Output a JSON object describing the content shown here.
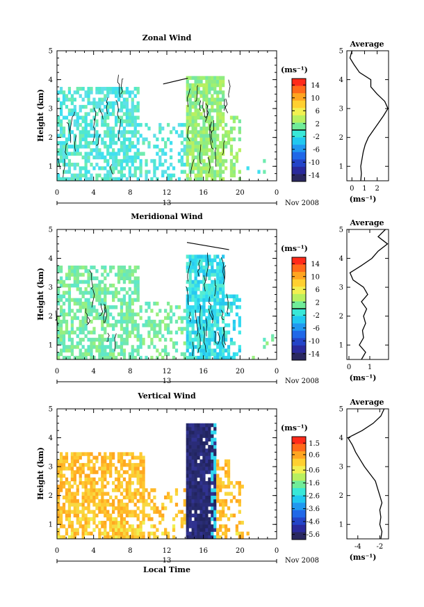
{
  "chart_data": [
    {
      "type": "heatmap",
      "title": "Zonal Wind",
      "ylabel": "Height (km)",
      "xlabel": "",
      "ylim": [
        0.5,
        5
      ],
      "yticks": [
        "1",
        "2",
        "3",
        "4",
        "5"
      ],
      "xticks": [
        "0",
        "4",
        "8",
        "12",
        "16",
        "20",
        "0"
      ],
      "day_label": "13",
      "date_label": "Nov 2008",
      "colorbar": {
        "unit": "(ms⁻¹)",
        "range": [
          -16,
          16
        ],
        "ticks": [
          "14",
          "10",
          "6",
          "2",
          "-2",
          "-6",
          "-10",
          "-14"
        ],
        "zero_line": 0
      },
      "profile": {
        "title": "Average",
        "xlabel": "(ms⁻¹)",
        "xticks": [
          "0",
          "1",
          "2"
        ],
        "xlim": [
          -0.4,
          2.9
        ],
        "heights": [
          0.5,
          0.75,
          1.0,
          1.25,
          1.5,
          1.75,
          2.0,
          2.25,
          2.5,
          2.75,
          3.0,
          3.25,
          3.5,
          3.75,
          4.0,
          4.25,
          4.5,
          4.75,
          5.0
        ],
        "values": [
          0.7,
          0.75,
          0.7,
          0.8,
          0.9,
          1.05,
          1.3,
          1.7,
          2.1,
          2.5,
          2.85,
          2.6,
          2.0,
          1.5,
          1.5,
          0.6,
          0.2,
          -0.15,
          0.0
        ]
      },
      "field": {
        "seed": 11,
        "base": "cyan-green",
        "night_color": "cyan",
        "day_color": "green-yellow"
      }
    },
    {
      "type": "heatmap",
      "title": "Meridional Wind",
      "ylabel": "Height (km)",
      "xlabel": "",
      "ylim": [
        0.5,
        5
      ],
      "yticks": [
        "1",
        "2",
        "3",
        "4",
        "5"
      ],
      "xticks": [
        "0",
        "4",
        "8",
        "12",
        "16",
        "20",
        "0"
      ],
      "day_label": "13",
      "date_label": "Nov 2008",
      "colorbar": {
        "unit": "(ms⁻¹)",
        "range": [
          -16,
          16
        ],
        "ticks": [
          "14",
          "10",
          "6",
          "2",
          "-2",
          "-6",
          "-10",
          "-14"
        ],
        "zero_line": 0
      },
      "profile": {
        "title": "Average",
        "xlabel": "(ms⁻¹)",
        "xticks": [
          "0",
          "1"
        ],
        "xlim": [
          -0.1,
          1.9
        ],
        "heights": [
          0.5,
          0.75,
          1.0,
          1.25,
          1.5,
          1.75,
          2.0,
          2.25,
          2.5,
          2.75,
          3.0,
          3.25,
          3.5,
          3.75,
          4.0,
          4.25,
          4.5,
          4.75,
          5.0
        ],
        "values": [
          0.6,
          0.8,
          0.5,
          0.7,
          0.65,
          0.8,
          0.7,
          0.85,
          0.6,
          0.9,
          0.7,
          0.2,
          0.05,
          0.6,
          1.1,
          1.4,
          1.85,
          1.4,
          1.75
        ]
      },
      "field": {
        "seed": 23,
        "base": "cyan-green",
        "night_color": "green",
        "day_color": "cyan"
      }
    },
    {
      "type": "heatmap",
      "title": "Vertical Wind",
      "ylabel": "Height (km)",
      "xlabel": "Local Time",
      "ylim": [
        0.5,
        5
      ],
      "yticks": [
        "1",
        "2",
        "3",
        "4",
        "5"
      ],
      "xticks": [
        "0",
        "4",
        "8",
        "12",
        "16",
        "20",
        "0"
      ],
      "day_label": "13",
      "date_label": "Nov 2008",
      "colorbar": {
        "unit": "(ms⁻¹)",
        "range": [
          -6.0,
          2.0
        ],
        "ticks": [
          "1.5",
          "0.6",
          "-0.6",
          "-1.6",
          "-2.6",
          "-3.6",
          "-4.6",
          "-5.6"
        ],
        "zero_line": null
      },
      "profile": {
        "title": "Average",
        "xlabel": "(ms⁻¹)",
        "xticks": [
          "-4",
          "-2"
        ],
        "xlim": [
          -5.0,
          -1.2
        ],
        "heights": [
          0.5,
          0.75,
          1.0,
          1.25,
          1.5,
          1.75,
          2.0,
          2.25,
          2.5,
          2.75,
          3.0,
          3.25,
          3.5,
          3.75,
          4.0,
          4.25,
          4.5,
          4.75,
          5.0
        ],
        "values": [
          -1.9,
          -1.8,
          -2.0,
          -1.9,
          -2.0,
          -1.8,
          -2.0,
          -2.2,
          -2.4,
          -2.9,
          -3.4,
          -3.8,
          -4.2,
          -4.5,
          -4.9,
          -3.6,
          -2.6,
          -1.9,
          -1.6
        ]
      },
      "field": {
        "seed": 37,
        "base": "yellow-orange",
        "night_color": "orange",
        "day_color": "navy"
      }
    }
  ]
}
